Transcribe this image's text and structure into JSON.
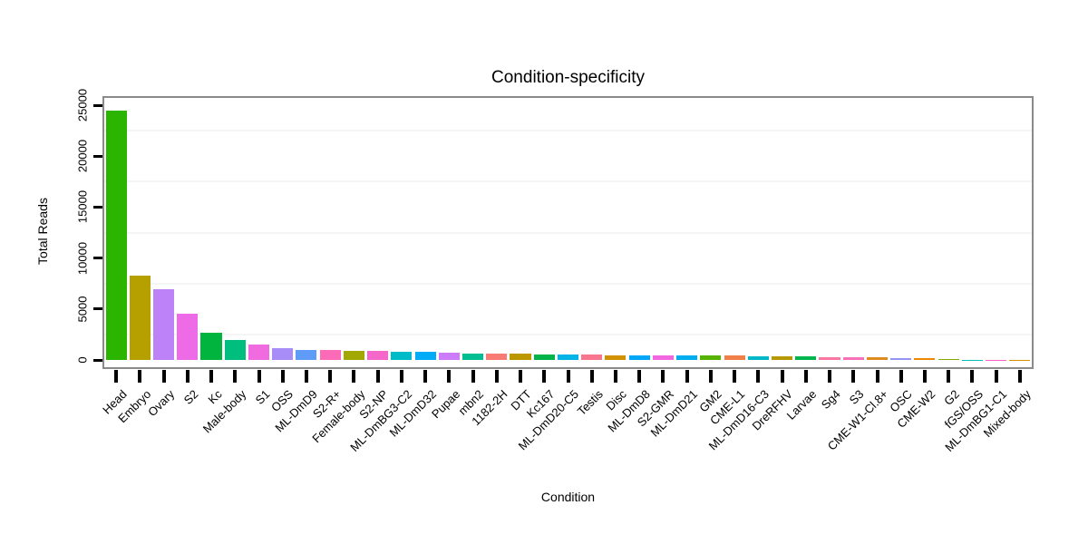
{
  "title": "Condition-specificity",
  "chart_data": {
    "type": "bar",
    "title": "Condition-specificity",
    "xlabel": "Condition",
    "ylabel": "Total Reads",
    "ylim": [
      -1300,
      26400
    ],
    "yticks": [
      0,
      5000,
      10000,
      15000,
      20000,
      25000
    ],
    "ytick_labels": [
      "0",
      "5000",
      "10000",
      "15000",
      "20000",
      "25000"
    ],
    "minor_gridlines": [
      2500,
      7500,
      12500,
      17500,
      22500
    ],
    "grid": "minor-only-faint",
    "legend_position": "none",
    "categories": [
      "Head",
      "Embryo",
      "Ovary",
      "S2",
      "Kc",
      "Male-body",
      "S1",
      "OSS",
      "ML-DmD9",
      "S2-R+",
      "Female-body",
      "S2-NP",
      "ML-DmBG3-C2",
      "ML-DmD32",
      "Pupae",
      "mbn2",
      "1182-2H",
      "DTT",
      "Kc167",
      "ML-DmD20-C5",
      "Testis",
      "Disc",
      "ML-DmD8",
      "S2-GMR",
      "ML-DmD21",
      "GM2",
      "CME-L1",
      "ML-DmD16-C3",
      "DreRFHV",
      "Larvae",
      "Sg4",
      "S3",
      "CME-W1-Cl.8+",
      "OSC",
      "CME-W2",
      "G2",
      "fGS/OSS",
      "ML-DmBG1-C1",
      "Mixed-body"
    ],
    "values": [
      24500,
      8300,
      6900,
      4500,
      2650,
      1950,
      1550,
      1200,
      950,
      940,
      930,
      880,
      800,
      780,
      720,
      640,
      620,
      580,
      550,
      520,
      500,
      490,
      460,
      445,
      435,
      425,
      415,
      395,
      350,
      330,
      280,
      250,
      225,
      205,
      140,
      110,
      35,
      20,
      10
    ],
    "bar_colors": [
      "#2BB400",
      "#B5A000",
      "#BE82F8",
      "#EE6BE8",
      "#00B43E",
      "#00BE7E",
      "#F06BE0",
      "#A88CF8",
      "#5E9CF8",
      "#FC6BB8",
      "#A2A800",
      "#F567C9",
      "#00BCC8",
      "#00ACF8",
      "#CC7CF8",
      "#00BE92",
      "#F87C74",
      "#BC9800",
      "#00B44A",
      "#00B4E8",
      "#F8768E",
      "#D29200",
      "#00A7F8",
      "#F266E0",
      "#00AEF0",
      "#56B400",
      "#F08048",
      "#00B8C8",
      "#B89800",
      "#00B450",
      "#F878A2",
      "#F870B8",
      "#E08B20",
      "#9494F4",
      "#EC8900",
      "#84AC00",
      "#00C0B4",
      "#FF62BF",
      "#D89000"
    ],
    "panel_border_color": "#8a8a8a",
    "axis_tick_color": "#000000"
  }
}
